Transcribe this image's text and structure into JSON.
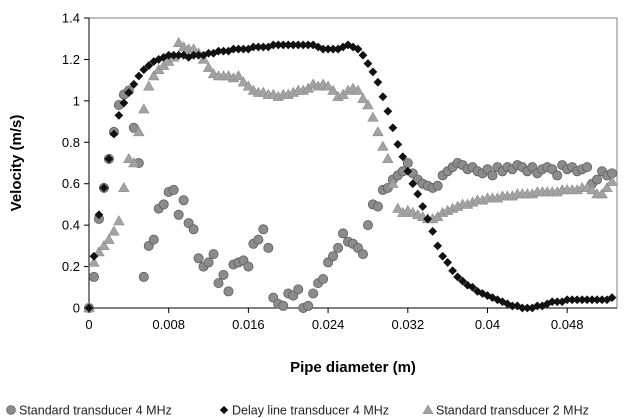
{
  "chart_data": {
    "type": "scatter",
    "title": "",
    "xlabel": "Pipe diameter (m)",
    "ylabel": "Velocity (m/s)",
    "xlim": [
      0,
      0.053
    ],
    "ylim": [
      0,
      1.4
    ],
    "x_ticks": [
      0,
      0.008,
      0.016,
      0.024,
      0.032,
      0.04,
      0.048
    ],
    "x_tick_labels": [
      "0",
      "0.008",
      "0.016",
      "0.024",
      "0.032",
      "0.04",
      "0.048"
    ],
    "y_ticks": [
      0,
      0.2,
      0.4,
      0.6,
      0.8,
      1,
      1.2,
      1.4
    ],
    "y_tick_labels": [
      "0",
      "0.2",
      "0.4",
      "0.6",
      "0.8",
      "1",
      "1.2",
      "1.4"
    ],
    "grid": false,
    "legend_position": "bottom",
    "series": [
      {
        "name": "Standard transducer 4 MHz",
        "marker": "circle",
        "color": "#8c8c8c",
        "x": [
          0.0,
          0.0005,
          0.001,
          0.0015,
          0.002,
          0.0025,
          0.003,
          0.0035,
          0.004,
          0.0045,
          0.005,
          0.0055,
          0.006,
          0.0065,
          0.007,
          0.0075,
          0.008,
          0.0085,
          0.009,
          0.0095,
          0.01,
          0.0105,
          0.011,
          0.0115,
          0.012,
          0.0125,
          0.013,
          0.0135,
          0.014,
          0.0145,
          0.015,
          0.0155,
          0.016,
          0.0165,
          0.017,
          0.0175,
          0.018,
          0.0185,
          0.019,
          0.0195,
          0.02,
          0.0205,
          0.021,
          0.0215,
          0.022,
          0.0225,
          0.023,
          0.0235,
          0.024,
          0.0245,
          0.025,
          0.0255,
          0.026,
          0.0265,
          0.027,
          0.0275,
          0.028,
          0.0285,
          0.029,
          0.0295,
          0.03,
          0.0305,
          0.031,
          0.0315,
          0.032,
          0.0325,
          0.033,
          0.0335,
          0.034,
          0.0345,
          0.035,
          0.0355,
          0.036,
          0.0365,
          0.037,
          0.0375,
          0.038,
          0.0385,
          0.039,
          0.0395,
          0.04,
          0.0405,
          0.041,
          0.0415,
          0.042,
          0.0425,
          0.043,
          0.0435,
          0.044,
          0.0445,
          0.045,
          0.0455,
          0.046,
          0.0465,
          0.047,
          0.0475,
          0.048,
          0.0485,
          0.049,
          0.0495,
          0.05,
          0.0505,
          0.051,
          0.0515,
          0.052,
          0.0525
        ],
        "y": [
          0.0,
          0.15,
          0.43,
          0.58,
          0.72,
          0.85,
          0.98,
          1.03,
          1.05,
          0.87,
          0.7,
          0.15,
          0.3,
          0.33,
          0.48,
          0.5,
          0.56,
          0.57,
          0.45,
          0.52,
          0.41,
          0.38,
          0.24,
          0.2,
          0.22,
          0.26,
          0.12,
          0.16,
          0.08,
          0.21,
          0.22,
          0.23,
          0.2,
          0.31,
          0.33,
          0.38,
          0.29,
          0.05,
          0.02,
          0.01,
          0.07,
          0.06,
          0.09,
          0.0,
          0.01,
          0.07,
          0.12,
          0.14,
          0.22,
          0.25,
          0.29,
          0.36,
          0.32,
          0.31,
          0.29,
          0.26,
          0.4,
          0.5,
          0.49,
          0.57,
          0.58,
          0.62,
          0.64,
          0.66,
          0.7,
          0.65,
          0.62,
          0.6,
          0.59,
          0.58,
          0.59,
          0.64,
          0.66,
          0.68,
          0.7,
          0.69,
          0.67,
          0.68,
          0.66,
          0.65,
          0.67,
          0.64,
          0.68,
          0.66,
          0.68,
          0.67,
          0.69,
          0.68,
          0.66,
          0.68,
          0.65,
          0.67,
          0.68,
          0.67,
          0.64,
          0.69,
          0.67,
          0.68,
          0.66,
          0.67,
          0.68,
          0.6,
          0.62,
          0.66,
          0.64,
          0.65
        ]
      },
      {
        "name": "Delay line transducer 4 MHz",
        "marker": "diamond",
        "color": "#111111",
        "x": [
          0.0,
          0.0005,
          0.001,
          0.0015,
          0.002,
          0.0025,
          0.003,
          0.0035,
          0.004,
          0.0045,
          0.005,
          0.0055,
          0.006,
          0.0065,
          0.007,
          0.0075,
          0.008,
          0.0085,
          0.009,
          0.0095,
          0.01,
          0.0105,
          0.011,
          0.0115,
          0.012,
          0.0125,
          0.013,
          0.0135,
          0.014,
          0.0145,
          0.015,
          0.0155,
          0.016,
          0.0165,
          0.017,
          0.0175,
          0.018,
          0.0185,
          0.019,
          0.0195,
          0.02,
          0.0205,
          0.021,
          0.0215,
          0.022,
          0.0225,
          0.023,
          0.0235,
          0.024,
          0.0245,
          0.025,
          0.0255,
          0.026,
          0.0265,
          0.027,
          0.0275,
          0.028,
          0.0285,
          0.029,
          0.0295,
          0.03,
          0.0305,
          0.031,
          0.0315,
          0.032,
          0.0325,
          0.033,
          0.0335,
          0.034,
          0.0345,
          0.035,
          0.0355,
          0.036,
          0.0365,
          0.037,
          0.0375,
          0.038,
          0.0385,
          0.039,
          0.0395,
          0.04,
          0.0405,
          0.041,
          0.0415,
          0.042,
          0.0425,
          0.043,
          0.0435,
          0.044,
          0.0445,
          0.045,
          0.0455,
          0.046,
          0.0465,
          0.047,
          0.0475,
          0.048,
          0.0485,
          0.049,
          0.0495,
          0.05,
          0.0505,
          0.051,
          0.0515,
          0.052,
          0.0525
        ],
        "y": [
          0.0,
          0.25,
          0.45,
          0.58,
          0.72,
          0.84,
          0.93,
          0.99,
          1.04,
          1.08,
          1.12,
          1.15,
          1.17,
          1.19,
          1.2,
          1.21,
          1.22,
          1.22,
          1.22,
          1.22,
          1.21,
          1.22,
          1.22,
          1.22,
          1.23,
          1.23,
          1.24,
          1.24,
          1.24,
          1.25,
          1.25,
          1.25,
          1.25,
          1.26,
          1.26,
          1.26,
          1.26,
          1.27,
          1.27,
          1.27,
          1.27,
          1.27,
          1.27,
          1.27,
          1.27,
          1.27,
          1.26,
          1.25,
          1.25,
          1.25,
          1.25,
          1.26,
          1.27,
          1.26,
          1.25,
          1.22,
          1.18,
          1.14,
          1.09,
          1.02,
          0.95,
          0.87,
          0.79,
          0.73,
          0.66,
          0.6,
          0.55,
          0.49,
          0.43,
          0.37,
          0.3,
          0.25,
          0.22,
          0.18,
          0.15,
          0.13,
          0.11,
          0.1,
          0.08,
          0.07,
          0.06,
          0.05,
          0.04,
          0.03,
          0.02,
          0.01,
          0.01,
          0.0,
          0.0,
          0.0,
          0.01,
          0.01,
          0.02,
          0.03,
          0.03,
          0.03,
          0.04,
          0.04,
          0.04,
          0.04,
          0.04,
          0.04,
          0.04,
          0.04,
          0.04,
          0.05
        ]
      },
      {
        "name": "Standard transducer 2 MHz",
        "marker": "triangle",
        "color": "#a3a3a3",
        "x": [
          0.0,
          0.0005,
          0.001,
          0.0015,
          0.002,
          0.0025,
          0.003,
          0.0035,
          0.004,
          0.0045,
          0.005,
          0.0055,
          0.006,
          0.0065,
          0.007,
          0.0075,
          0.008,
          0.0085,
          0.009,
          0.0095,
          0.01,
          0.0105,
          0.011,
          0.0115,
          0.012,
          0.0125,
          0.013,
          0.0135,
          0.014,
          0.0145,
          0.015,
          0.0155,
          0.016,
          0.0165,
          0.017,
          0.0175,
          0.018,
          0.0185,
          0.019,
          0.0195,
          0.02,
          0.0205,
          0.021,
          0.0215,
          0.022,
          0.0225,
          0.023,
          0.0235,
          0.024,
          0.0245,
          0.025,
          0.0255,
          0.026,
          0.0265,
          0.027,
          0.0275,
          0.028,
          0.0285,
          0.029,
          0.0295,
          0.03,
          0.0305,
          0.031,
          0.0315,
          0.032,
          0.0325,
          0.033,
          0.0335,
          0.034,
          0.0345,
          0.035,
          0.0355,
          0.036,
          0.0365,
          0.037,
          0.0375,
          0.038,
          0.0385,
          0.039,
          0.0395,
          0.04,
          0.0405,
          0.041,
          0.0415,
          0.042,
          0.0425,
          0.043,
          0.0435,
          0.044,
          0.0445,
          0.045,
          0.0455,
          0.046,
          0.0465,
          0.047,
          0.0475,
          0.048,
          0.0485,
          0.049,
          0.0495,
          0.05,
          0.0505,
          0.051,
          0.0515,
          0.052,
          0.0525
        ],
        "y": [
          0.0,
          0.22,
          0.27,
          0.3,
          0.33,
          0.37,
          0.42,
          0.58,
          0.72,
          0.7,
          0.85,
          0.96,
          1.07,
          1.12,
          1.15,
          1.17,
          1.19,
          1.21,
          1.28,
          1.26,
          1.25,
          1.25,
          1.23,
          1.2,
          1.16,
          1.13,
          1.12,
          1.12,
          1.12,
          1.11,
          1.12,
          1.09,
          1.07,
          1.05,
          1.04,
          1.04,
          1.03,
          1.03,
          1.02,
          1.03,
          1.03,
          1.04,
          1.05,
          1.05,
          1.06,
          1.08,
          1.07,
          1.08,
          1.07,
          1.05,
          1.02,
          1.03,
          1.05,
          1.06,
          1.05,
          1.01,
          0.98,
          0.92,
          0.85,
          0.78,
          0.72,
          0.6,
          0.48,
          0.46,
          0.47,
          0.46,
          0.45,
          0.44,
          0.43,
          0.43,
          0.44,
          0.46,
          0.47,
          0.48,
          0.49,
          0.5,
          0.5,
          0.51,
          0.52,
          0.52,
          0.53,
          0.53,
          0.53,
          0.54,
          0.54,
          0.54,
          0.55,
          0.55,
          0.55,
          0.55,
          0.56,
          0.56,
          0.56,
          0.56,
          0.56,
          0.57,
          0.57,
          0.57,
          0.57,
          0.58,
          0.58,
          0.57,
          0.55,
          0.55,
          0.58,
          0.61
        ]
      }
    ]
  }
}
